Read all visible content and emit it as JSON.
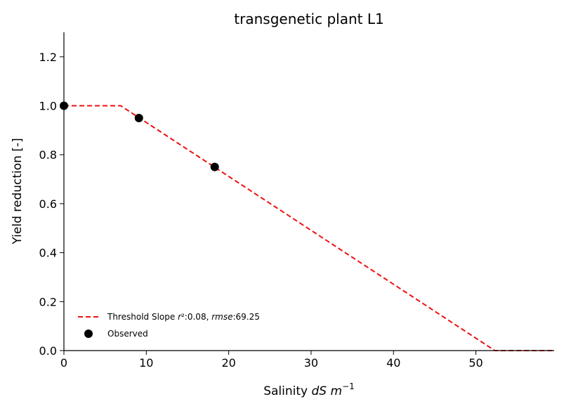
{
  "chart_data": {
    "type": "line",
    "title": "transgenetic plant L1",
    "xlabel_prefix": "Salinity ",
    "xlabel_math": "dS m",
    "xlabel_sup": "−1",
    "ylabel": "Yield reduction [-]",
    "xlim": [
      0,
      59.5
    ],
    "ylim": [
      0,
      1.3
    ],
    "xticks": [
      0,
      10,
      20,
      30,
      40,
      50
    ],
    "yticks": [
      0.0,
      0.2,
      0.4,
      0.6,
      0.8,
      1.0,
      1.2
    ],
    "xtick_labels": [
      "0",
      "10",
      "20",
      "30",
      "40",
      "50"
    ],
    "ytick_labels": [
      "0.0",
      "0.2",
      "0.4",
      "0.6",
      "0.8",
      "1.0",
      "1.2"
    ],
    "grid": false,
    "legend_position": "lower-left",
    "series": [
      {
        "name": "Threshold Slope r²:0.08, rmse:69.25",
        "kind": "line",
        "style": "dashed",
        "color": "#ee1111",
        "x": [
          0,
          6.9,
          52.3,
          59.5
        ],
        "y": [
          1.0,
          1.0,
          0.0,
          0.0
        ]
      },
      {
        "name": "Observed",
        "kind": "scatter",
        "color": "#000000",
        "x": [
          0,
          9.1,
          18.3
        ],
        "y": [
          1.0,
          0.95,
          0.75
        ]
      }
    ],
    "legend": {
      "line_pre": "Threshold Slope ",
      "line_r": "r",
      "line_r_val": "²:0.08, ",
      "line_rmse": "rmse",
      "line_rmse_val": ":69.25",
      "scatter": "Observed"
    }
  }
}
